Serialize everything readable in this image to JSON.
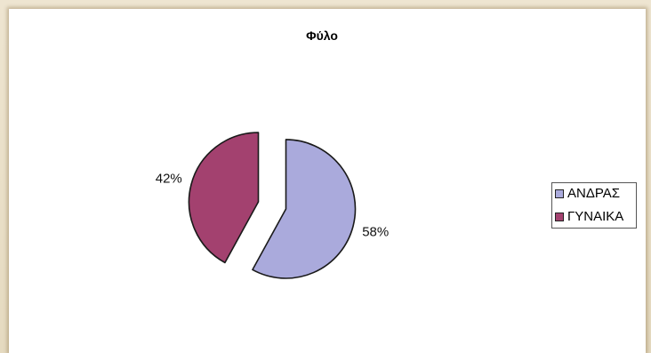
{
  "chart_data": {
    "type": "pie",
    "title": "Φύλο",
    "categories": [
      "ΑΝΔΡΑΣ",
      "ΓΥΝΑΙΚΑ"
    ],
    "values": [
      58,
      42
    ],
    "data_labels": [
      "58%",
      "42%"
    ],
    "colors": [
      "#aaaadc",
      "#a3416f"
    ],
    "exploded": true,
    "legend": "right"
  }
}
